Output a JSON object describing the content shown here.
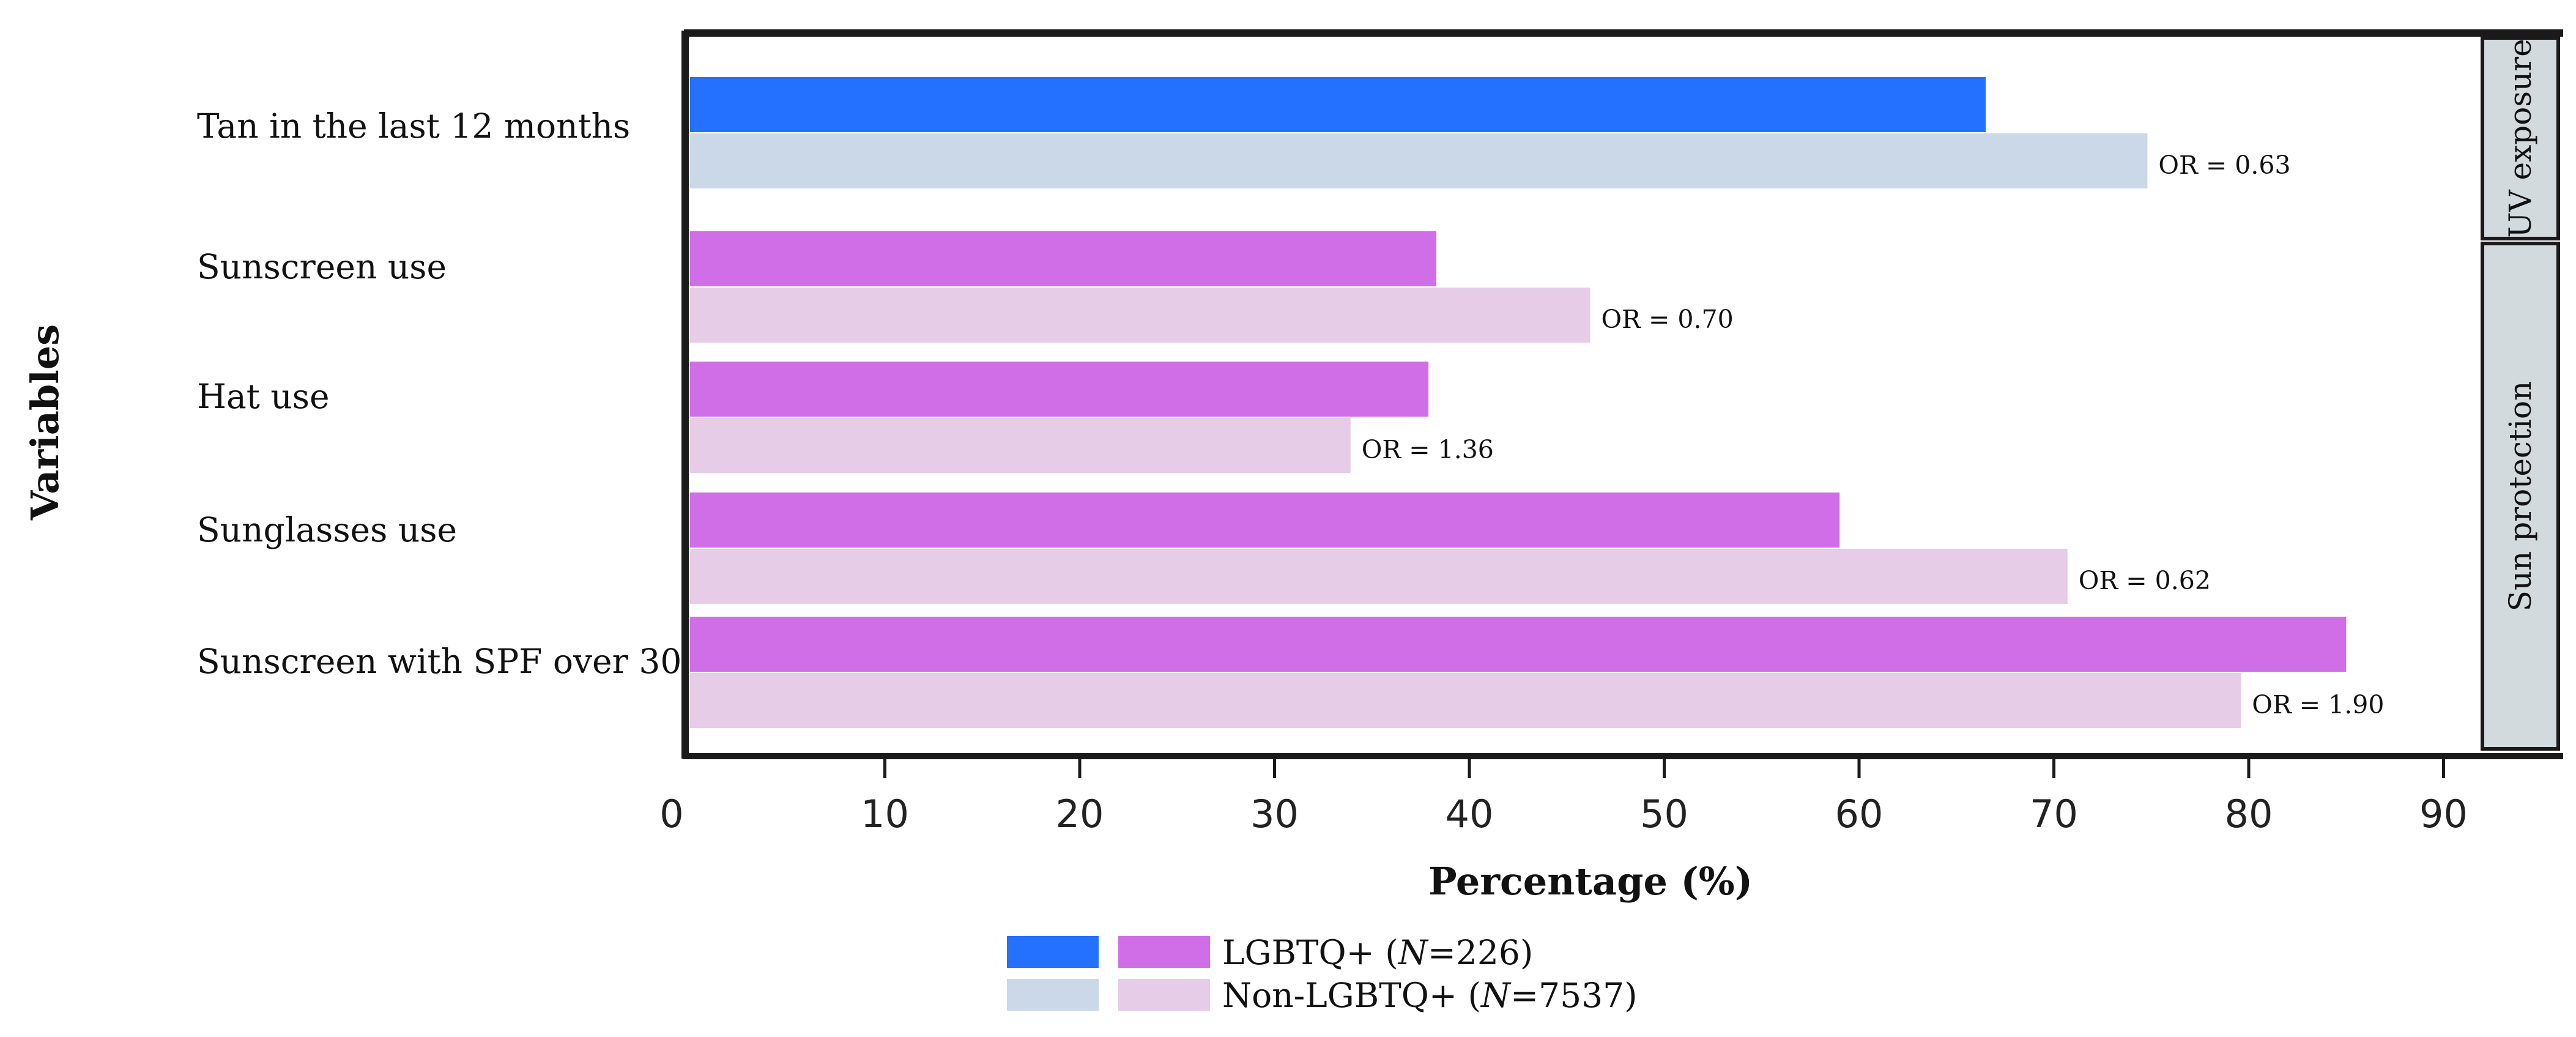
{
  "chart_data": {
    "type": "bar",
    "orientation": "horizontal",
    "xlabel": "Percentage (%)",
    "ylabel": "Variables",
    "xlim": [
      0,
      98
    ],
    "xticks": [
      "0",
      "10",
      "20",
      "30",
      "40",
      "50",
      "60",
      "70",
      "80",
      "90"
    ],
    "groups": [
      {
        "label": "UV exposure",
        "items": [
          {
            "category": "Tan in the last 12 months",
            "lgbtq": 66.5,
            "non_lgbtq": 74.8,
            "or_label": "OR = 0.63"
          }
        ]
      },
      {
        "label": "Sun protection",
        "items": [
          {
            "category": "Sunscreen use",
            "lgbtq": 38.3,
            "non_lgbtq": 46.2,
            "or_label": "OR = 0.70"
          },
          {
            "category": "Hat use",
            "lgbtq": 37.9,
            "non_lgbtq": 33.9,
            "or_label": "OR = 1.36"
          },
          {
            "category": "Sunglasses use",
            "lgbtq": 59.0,
            "non_lgbtq": 70.7,
            "or_label": "OR = 0.62"
          },
          {
            "category": "Sunscreen with SPF over 30",
            "lgbtq": 85.0,
            "non_lgbtq": 79.6,
            "or_label": "OR = 1.90"
          }
        ]
      }
    ],
    "colors": {
      "uv_lgbtq": "#2470ff",
      "uv_non_lgbtq": "#cbd8e8",
      "sun_lgbtq": "#d06ee8",
      "sun_non_lgbtq": "#e6cce6",
      "strip_bg": "#d3dade"
    },
    "legend": {
      "position": "bottom-center",
      "entries": [
        {
          "prefix": "LGBTQ+ (",
          "n_symbol": "N",
          "suffix": "=226)"
        },
        {
          "prefix": "Non-LGBTQ+ (",
          "n_symbol": "N",
          "suffix": "=7537)"
        }
      ]
    }
  }
}
